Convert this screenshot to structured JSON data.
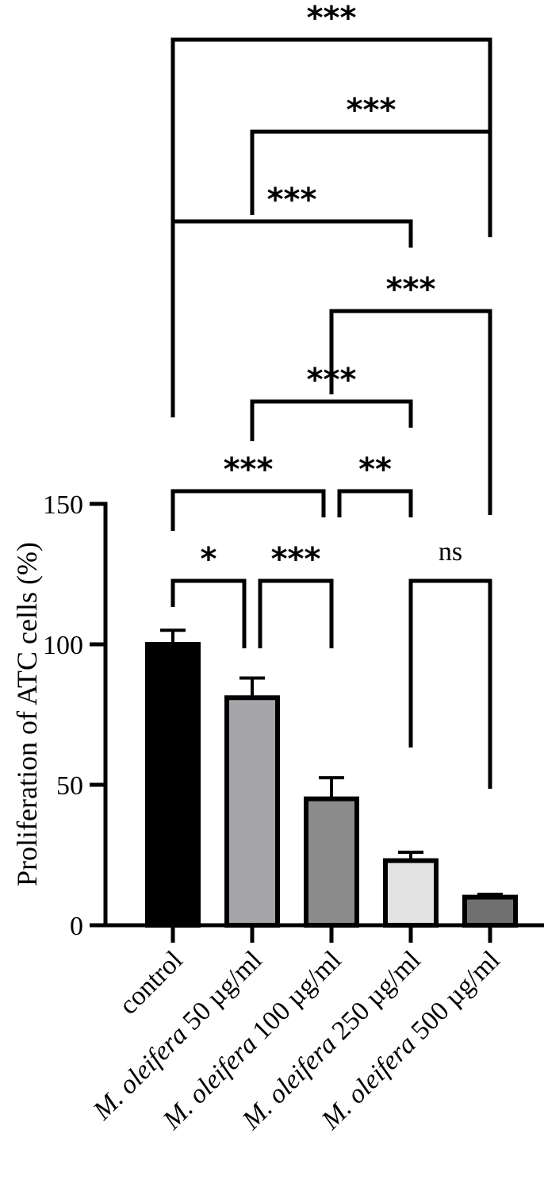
{
  "chart_data": {
    "type": "bar",
    "title": "",
    "xlabel": "",
    "ylabel": "Proliferation of ATC cells (%)",
    "ylim": [
      0,
      150
    ],
    "yticks": [
      0,
      50,
      100,
      150
    ],
    "categories": [
      {
        "italic": "",
        "rest": "control"
      },
      {
        "italic": "M. oleifera",
        "rest": " 50 µg/ml"
      },
      {
        "italic": "M. oleifera",
        "rest": " 100 µg/ml"
      },
      {
        "italic": "M. oleifera",
        "rest": " 250 µg/ml"
      },
      {
        "italic": "M. oleifera",
        "rest": " 500 µg/ml"
      }
    ],
    "values": [
      100,
      81,
      45,
      23,
      10
    ],
    "errors": [
      5,
      7,
      7.5,
      3,
      1
    ],
    "colors": [
      "#000000",
      "#a6a6aa",
      "#8c8c8c",
      "#e3e3e3",
      "#707070"
    ],
    "grid": false,
    "comparisons": [
      {
        "from": 0,
        "to": 4,
        "label": "***"
      },
      {
        "from": 1,
        "to": 4,
        "label": "***"
      },
      {
        "from": 0,
        "to": 3,
        "label": "***"
      },
      {
        "from": 2,
        "to": 4,
        "label": "***"
      },
      {
        "from": 1,
        "to": 3,
        "label": "***"
      },
      {
        "from": 0,
        "to": 2,
        "label": "***"
      },
      {
        "from": 2,
        "to": 3,
        "label": "**"
      },
      {
        "from": 0,
        "to": 1,
        "label": "*"
      },
      {
        "from": 1,
        "to": 2,
        "label": "***"
      },
      {
        "from": 3,
        "to": 4,
        "label": "ns"
      }
    ]
  }
}
